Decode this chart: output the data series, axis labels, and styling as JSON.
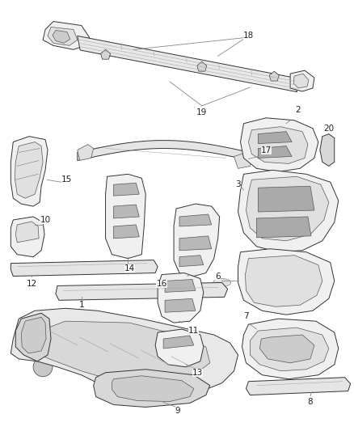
{
  "background_color": "#ffffff",
  "line_color": "#888888",
  "text_color": "#222222",
  "fig_width": 4.38,
  "fig_height": 5.33,
  "dpi": 100,
  "label_fontsize": 7.5,
  "part_fill": "#f0f0f0",
  "part_edge": "#333333",
  "part_lw": 0.7,
  "inner_fill": "#e0e0e0",
  "inner_edge": "#555555",
  "inner_lw": 0.5,
  "label_line_color": "#888888",
  "label_line_lw": 0.6
}
